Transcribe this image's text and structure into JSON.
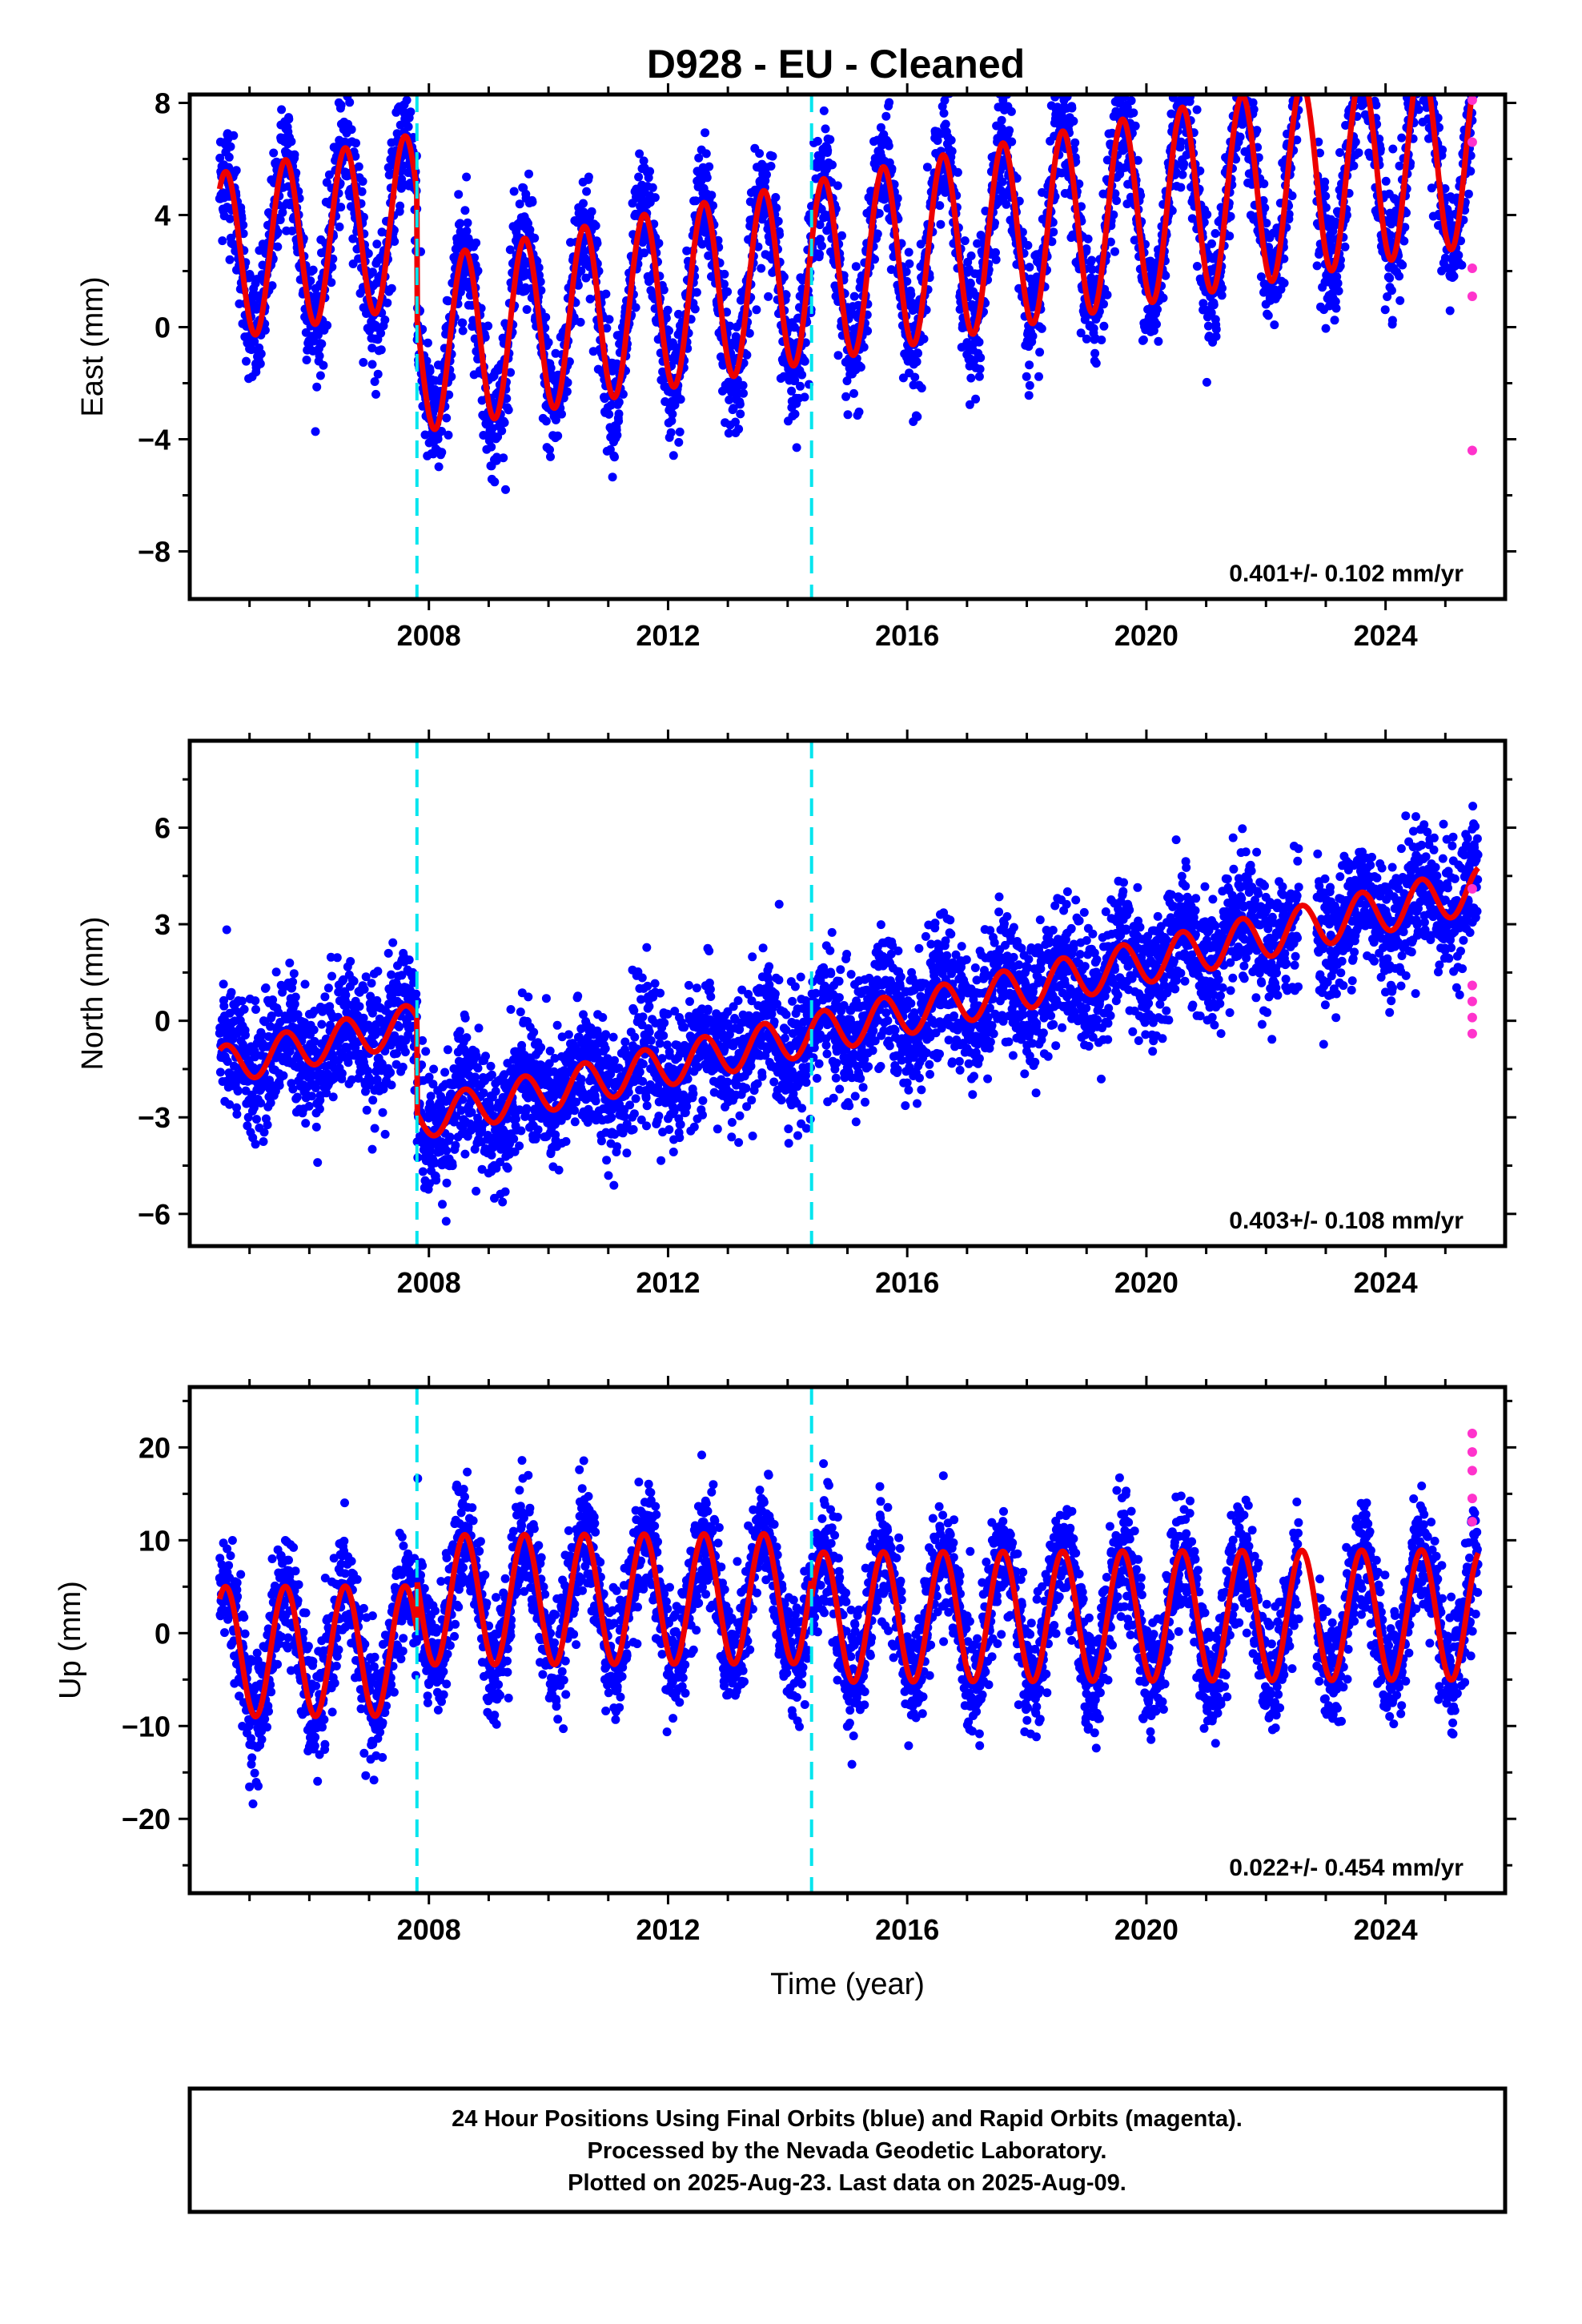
{
  "chart_data": [
    {
      "type": "scatter",
      "title": "D928  - EU - Cleaned",
      "ylabel": "East (mm)",
      "xlabel": "",
      "xlim": [
        2004.0,
        2026.0
      ],
      "ylim": [
        -9.7,
        8.3
      ],
      "yticks": [
        8,
        4,
        0,
        -4,
        -8
      ],
      "ytick_labels": [
        "8",
        "4",
        "0",
        "−4",
        "−8"
      ],
      "xticks": [
        2008,
        2012,
        2016,
        2020,
        2024
      ],
      "xtick_labels": [
        "2008",
        "2012",
        "2016",
        "2020",
        "2024"
      ],
      "rate_text": "0.401+/- 0.102 mm/yr",
      "offset_epochs": [
        2007.8,
        2014.4
      ],
      "series": [
        {
          "kind": "final",
          "color": "#0000ff"
        },
        {
          "kind": "rapid",
          "color": "#ff33cc",
          "x": [
            2025.45,
            2025.45,
            2025.45,
            2025.45,
            2025.45
          ],
          "y": [
            8.1,
            6.6,
            2.1,
            1.1,
            -4.4
          ]
        },
        {
          "kind": "model",
          "color": "#ee0000"
        }
      ],
      "model": {
        "start": 2004.5,
        "end": 2025.55,
        "trend": 0.401,
        "offset_at_2004_5": 2.5,
        "seasonal_amp_start": 3.0,
        "seasonal_amp_end": 3.5,
        "steps": [
          [
            2007.8,
            -4.5
          ]
        ]
      }
    },
    {
      "type": "scatter",
      "title": "",
      "ylabel": "North (mm)",
      "xlabel": "",
      "xlim": [
        2004.0,
        2026.0
      ],
      "ylim": [
        -7.0,
        8.7
      ],
      "yticks": [
        6,
        3,
        0,
        -3,
        -6
      ],
      "ytick_labels": [
        "6",
        "3",
        "0",
        "−3",
        "−6"
      ],
      "xticks": [
        2008,
        2012,
        2016,
        2020,
        2024
      ],
      "xtick_labels": [
        "2008",
        "2012",
        "2016",
        "2020",
        "2024"
      ],
      "rate_text": "0.403+/- 0.108 mm/yr",
      "offset_epochs": [
        2007.8,
        2014.4
      ],
      "series": [
        {
          "kind": "final",
          "color": "#0000ff"
        },
        {
          "kind": "rapid",
          "color": "#ff33cc",
          "x": [
            2025.45,
            2025.45,
            2025.45,
            2025.45,
            2025.45
          ],
          "y": [
            4.1,
            1.1,
            0.6,
            0.1,
            -0.4
          ]
        },
        {
          "kind": "model",
          "color": "#ee0000"
        }
      ],
      "model": {
        "start": 2004.5,
        "end": 2025.55,
        "trend": 0.403,
        "offset_at_2004_5": -1.4,
        "seasonal_amp_start": 0.6,
        "seasonal_amp_end": 0.7,
        "steps": [
          [
            2007.8,
            -3.0
          ]
        ]
      }
    },
    {
      "type": "scatter",
      "title": "",
      "ylabel": "Up (mm)",
      "xlabel": "Time (year)",
      "xlim": [
        2004.0,
        2026.0
      ],
      "ylim": [
        -28.0,
        26.5
      ],
      "yticks": [
        20,
        10,
        0,
        -10,
        -20
      ],
      "ytick_labels": [
        "20",
        "10",
        "0",
        "−10",
        "−20"
      ],
      "xticks": [
        2008,
        2012,
        2016,
        2020,
        2024
      ],
      "xtick_labels": [
        "2008",
        "2012",
        "2016",
        "2020",
        "2024"
      ],
      "rate_text": "0.022+/- 0.454 mm/yr",
      "offset_epochs": [
        2007.8,
        2014.4
      ],
      "series": [
        {
          "kind": "final",
          "color": "#0000ff"
        },
        {
          "kind": "rapid",
          "color": "#ff33cc",
          "x": [
            2025.45,
            2025.45,
            2025.45,
            2025.45,
            2025.45
          ],
          "y": [
            21.5,
            19.5,
            17.5,
            14.5,
            12.0
          ]
        },
        {
          "kind": "model",
          "color": "#ee0000"
        }
      ],
      "model": {
        "start": 2004.5,
        "end": 2025.55,
        "trend": 0.022,
        "offset_at_2004_5": -2.0,
        "seasonal_amp_start": 7.0,
        "seasonal_amp_end": 7.0,
        "steps": [
          [
            2007.8,
            5.5
          ],
          [
            2014.4,
            -2.0
          ]
        ]
      }
    }
  ],
  "footer": {
    "line1": "24 Hour Positions Using Final Orbits (blue) and Rapid Orbits (magenta).",
    "line2": "Processed by the Nevada Geodetic Laboratory.",
    "line3": "Plotted on 2025-Aug-23. Last data on 2025-Aug-09."
  },
  "colors": {
    "final": "#0000ff",
    "rapid": "#ff33cc",
    "model": "#ee0000",
    "offset": "#00e5ee"
  }
}
